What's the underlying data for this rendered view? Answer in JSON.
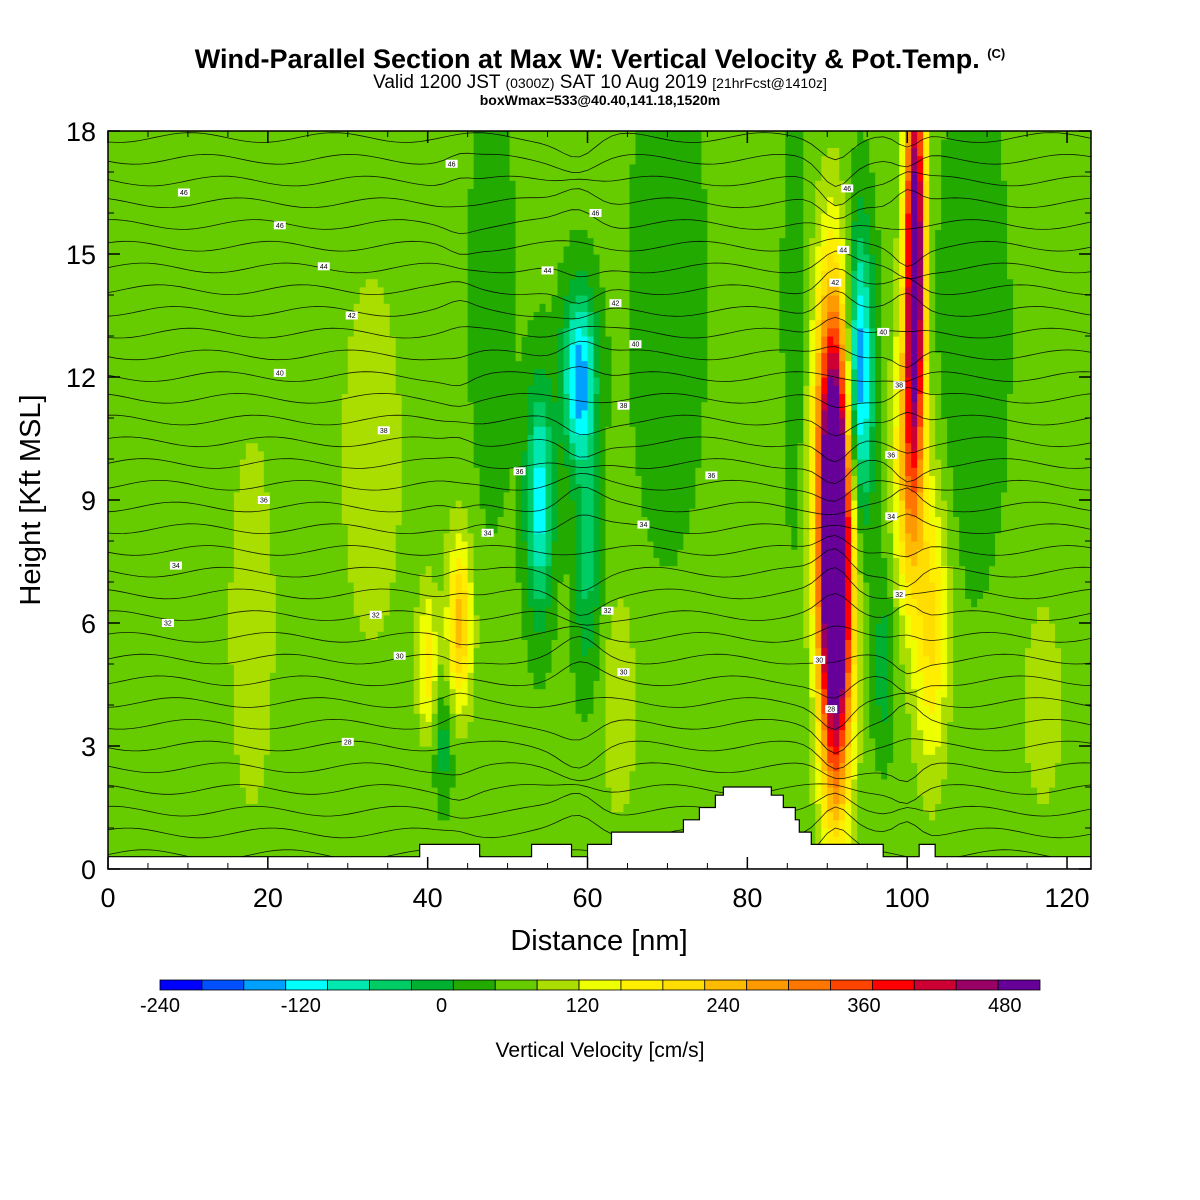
{
  "title": {
    "main": "Wind-Parallel Section at Max W: Vertical Velocity & Pot.Temp.",
    "copyright": "(C)",
    "valid_prefix": "Valid 1200 JST",
    "valid_utc": "(0300Z)",
    "valid_date": "SAT 10 Aug 2019",
    "valid_fcst": "[21hrFcst@1410z]",
    "box": "boxWmax=533@40.40,141.18,1520m"
  },
  "chart_data": {
    "type": "heatmap",
    "xlabel": "Distance [nm]",
    "ylabel": "Height [Kft MSL]",
    "xlim": [
      0,
      123
    ],
    "ylim": [
      0,
      18
    ],
    "xticks": [
      0,
      20,
      40,
      60,
      80,
      100,
      120
    ],
    "yticks": [
      0,
      3,
      6,
      9,
      12,
      15,
      18
    ],
    "colorbar": {
      "label": "Vertical Velocity [cm/s]",
      "ticks": [
        -240,
        -120,
        0,
        120,
        240,
        360,
        480
      ],
      "levels": [
        -240,
        -210,
        -180,
        -150,
        -120,
        -90,
        -60,
        -30,
        0,
        30,
        60,
        90,
        120,
        150,
        180,
        210,
        240,
        270,
        300,
        330,
        360,
        390,
        420,
        450,
        480,
        510
      ],
      "colors": [
        "#0000ff",
        "#0050ff",
        "#00a0ff",
        "#00ffff",
        "#00e8b0",
        "#00cc66",
        "#00b030",
        "#22aa00",
        "#66cc00",
        "#aadd00",
        "#eeff00",
        "#ffee00",
        "#ffdd00",
        "#ffbb00",
        "#ff9900",
        "#ff7700",
        "#ff4400",
        "#ff0000",
        "#cc0033",
        "#990066",
        "#660099"
      ]
    },
    "background_w": 10,
    "w_features": [
      {
        "x": 91,
        "y": 7,
        "sx": 1.4,
        "sy": 3.5,
        "w": 533
      },
      {
        "x": 90.5,
        "y": 11,
        "sx": 1.6,
        "sy": 3,
        "w": 180
      },
      {
        "x": 101,
        "y": 15,
        "sx": 0.9,
        "sy": 3.5,
        "w": 420
      },
      {
        "x": 100,
        "y": 10,
        "sx": 1.2,
        "sy": 2.5,
        "w": 150
      },
      {
        "x": 94,
        "y": 12,
        "sx": 1.2,
        "sy": 2.5,
        "w": -200
      },
      {
        "x": 59,
        "y": 12,
        "sx": 1.5,
        "sy": 1.5,
        "w": -180
      },
      {
        "x": 54,
        "y": 9,
        "sx": 1.2,
        "sy": 2.0,
        "w": -150
      },
      {
        "x": 60,
        "y": 7.5,
        "sx": 1.2,
        "sy": 2.0,
        "w": -80
      },
      {
        "x": 44,
        "y": 6,
        "sx": 1.1,
        "sy": 1.5,
        "w": 150
      },
      {
        "x": 40,
        "y": 5,
        "sx": 0.8,
        "sy": 1.2,
        "w": 100
      },
      {
        "x": 42,
        "y": 3,
        "sx": 0.8,
        "sy": 1.0,
        "w": -60
      },
      {
        "x": 33,
        "y": 10,
        "sx": 4,
        "sy": 5,
        "w": 30
      },
      {
        "x": 18,
        "y": 6,
        "sx": 3,
        "sy": 5,
        "w": 30
      },
      {
        "x": 70,
        "y": 14,
        "sx": 3,
        "sy": 4,
        "w": -40
      },
      {
        "x": 103,
        "y": 6,
        "sx": 1.5,
        "sy": 2.5,
        "w": 120
      },
      {
        "x": 97,
        "y": 5,
        "sx": 1.0,
        "sy": 1.5,
        "w": -60
      },
      {
        "x": 108,
        "y": 13,
        "sx": 3,
        "sy": 4,
        "w": -40
      },
      {
        "x": 48,
        "y": 14,
        "sx": 2,
        "sy": 4,
        "w": -30
      },
      {
        "x": 64,
        "y": 4,
        "sx": 1.5,
        "sy": 2,
        "w": 50
      },
      {
        "x": 86,
        "y": 14,
        "sx": 1,
        "sy": 4,
        "w": -40
      },
      {
        "x": 117,
        "y": 4,
        "sx": 2,
        "sy": 2,
        "w": 40
      }
    ],
    "terrain": [
      {
        "x": 0,
        "h": 0.3
      },
      {
        "x": 39,
        "h": 0.3
      },
      {
        "x": 39,
        "h": 0.6
      },
      {
        "x": 46.5,
        "h": 0.6
      },
      {
        "x": 46.5,
        "h": 0.3
      },
      {
        "x": 53,
        "h": 0.3
      },
      {
        "x": 53,
        "h": 0.6
      },
      {
        "x": 58,
        "h": 0.6
      },
      {
        "x": 58,
        "h": 0.3
      },
      {
        "x": 60,
        "h": 0.3
      },
      {
        "x": 60,
        "h": 0.6
      },
      {
        "x": 63,
        "h": 0.6
      },
      {
        "x": 63,
        "h": 0.9
      },
      {
        "x": 72,
        "h": 0.9
      },
      {
        "x": 72,
        "h": 1.2
      },
      {
        "x": 74,
        "h": 1.2
      },
      {
        "x": 74,
        "h": 1.5
      },
      {
        "x": 76,
        "h": 1.5
      },
      {
        "x": 76,
        "h": 1.8
      },
      {
        "x": 77,
        "h": 1.8
      },
      {
        "x": 77,
        "h": 2.0
      },
      {
        "x": 83,
        "h": 2.0
      },
      {
        "x": 83,
        "h": 1.8
      },
      {
        "x": 84.5,
        "h": 1.8
      },
      {
        "x": 84.5,
        "h": 1.5
      },
      {
        "x": 86,
        "h": 1.5
      },
      {
        "x": 86,
        "h": 1.2
      },
      {
        "x": 86.5,
        "h": 1.2
      },
      {
        "x": 86.5,
        "h": 0.9
      },
      {
        "x": 88,
        "h": 0.9
      },
      {
        "x": 88,
        "h": 0.6
      },
      {
        "x": 97,
        "h": 0.6
      },
      {
        "x": 97,
        "h": 0.3
      },
      {
        "x": 101.5,
        "h": 0.3
      },
      {
        "x": 101.5,
        "h": 0.6
      },
      {
        "x": 103.5,
        "h": 0.6
      },
      {
        "x": 103.5,
        "h": 0.3
      },
      {
        "x": 123,
        "h": 0.3
      }
    ],
    "theta_labels": [
      {
        "x": 43,
        "y": 17.2,
        "v": "46"
      },
      {
        "x": 9.5,
        "y": 16.5,
        "v": "46"
      },
      {
        "x": 61,
        "y": 16,
        "v": "46"
      },
      {
        "x": 21.5,
        "y": 15.7,
        "v": "46"
      },
      {
        "x": 92.5,
        "y": 16.6,
        "v": "46"
      },
      {
        "x": 27,
        "y": 14.7,
        "v": "44"
      },
      {
        "x": 55,
        "y": 14.6,
        "v": "44"
      },
      {
        "x": 92,
        "y": 15.1,
        "v": "44"
      },
      {
        "x": 63.5,
        "y": 13.8,
        "v": "42"
      },
      {
        "x": 91,
        "y": 14.3,
        "v": "42"
      },
      {
        "x": 30.5,
        "y": 13.5,
        "v": "42"
      },
      {
        "x": 66,
        "y": 12.8,
        "v": "40"
      },
      {
        "x": 97,
        "y": 13.1,
        "v": "40"
      },
      {
        "x": 21.5,
        "y": 12.1,
        "v": "40"
      },
      {
        "x": 99,
        "y": 11.8,
        "v": "38"
      },
      {
        "x": 64.5,
        "y": 11.3,
        "v": "38"
      },
      {
        "x": 34.5,
        "y": 10.7,
        "v": "38"
      },
      {
        "x": 51.5,
        "y": 9.7,
        "v": "36"
      },
      {
        "x": 75.5,
        "y": 9.6,
        "v": "36"
      },
      {
        "x": 98,
        "y": 10.1,
        "v": "36"
      },
      {
        "x": 19.5,
        "y": 9.0,
        "v": "36"
      },
      {
        "x": 47.5,
        "y": 8.2,
        "v": "34"
      },
      {
        "x": 67,
        "y": 8.4,
        "v": "34"
      },
      {
        "x": 98,
        "y": 8.6,
        "v": "34"
      },
      {
        "x": 8.5,
        "y": 7.4,
        "v": "34"
      },
      {
        "x": 7.5,
        "y": 6.0,
        "v": "32"
      },
      {
        "x": 33.5,
        "y": 6.2,
        "v": "32"
      },
      {
        "x": 62.5,
        "y": 6.3,
        "v": "32"
      },
      {
        "x": 99,
        "y": 6.7,
        "v": "32"
      },
      {
        "x": 36.5,
        "y": 5.2,
        "v": "30"
      },
      {
        "x": 89,
        "y": 5.1,
        "v": "30"
      },
      {
        "x": 64.5,
        "y": 4.8,
        "v": "30"
      },
      {
        "x": 90.5,
        "y": 3.9,
        "v": "28"
      },
      {
        "x": 30,
        "y": 3.1,
        "v": "28"
      }
    ]
  }
}
